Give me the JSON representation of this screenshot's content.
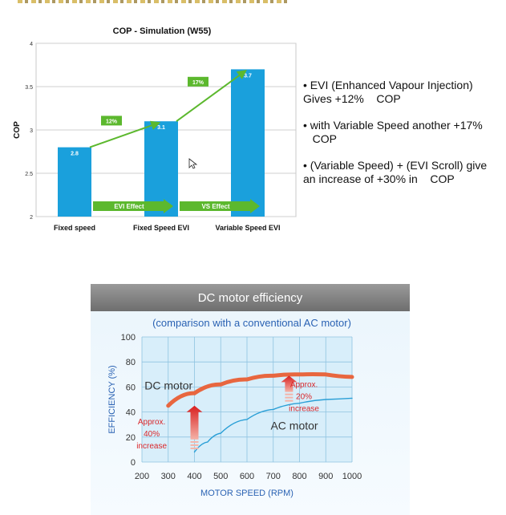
{
  "bullets": [
    "• EVI (Enhanced Vapour Injection)\nGives +12%    COP",
    "• with Variable Speed another +17%\n   COP",
    "• (Variable Speed) + (EVI Scroll) give\nan increase of +30% in    COP"
  ],
  "chart_data": [
    {
      "type": "bar",
      "title": "COP - Simulation (W55)",
      "ylabel": "COP",
      "xlabel": "",
      "ylim": [
        2,
        4
      ],
      "yticks": [
        "2",
        "2.5",
        "3",
        "3.5",
        "4"
      ],
      "categories": [
        "Fixed speed",
        "Fixed Speed EVI",
        "Variable Speed EVI"
      ],
      "values": [
        2.8,
        3.1,
        3.7
      ],
      "value_labels": [
        "2.8",
        "3.1",
        "3.7"
      ],
      "bar_color": "#1aa0dc",
      "increase_labels": [
        "12%",
        "17%"
      ],
      "effect_labels": [
        "EVI Effect",
        "VS Effect"
      ],
      "arrow_color": "#5cb82e",
      "grid": true
    },
    {
      "type": "line",
      "title": "DC motor efficiency",
      "subtitle": "(comparison with a conventional AC motor)",
      "xlabel": "MOTOR SPEED (RPM)",
      "ylabel": "EFFICIENCY (%)",
      "xlim": [
        200,
        1000
      ],
      "ylim": [
        0,
        100
      ],
      "xticks": [
        "200",
        "300",
        "400",
        "500",
        "600",
        "700",
        "800",
        "900",
        "1000"
      ],
      "yticks": [
        "0",
        "20",
        "40",
        "60",
        "80",
        "100"
      ],
      "grid": true,
      "series": [
        {
          "name": "DC motor",
          "color": "#e8663f",
          "x": [
            300,
            400,
            500,
            600,
            700,
            800,
            900,
            1000
          ],
          "y": [
            45,
            55,
            62,
            66,
            69,
            70,
            70,
            68
          ]
        },
        {
          "name": "AC motor",
          "color": "#2a9fd6",
          "x": [
            400,
            450,
            500,
            600,
            700,
            800,
            900,
            1000
          ],
          "y": [
            8,
            16,
            23,
            34,
            42,
            47,
            50,
            51
          ]
        }
      ],
      "annotations": [
        {
          "text": [
            "Approx.",
            "40%",
            "increase"
          ],
          "x": 400
        },
        {
          "text": [
            "Approx.",
            "20%",
            "increase"
          ],
          "x": 760
        }
      ]
    }
  ]
}
